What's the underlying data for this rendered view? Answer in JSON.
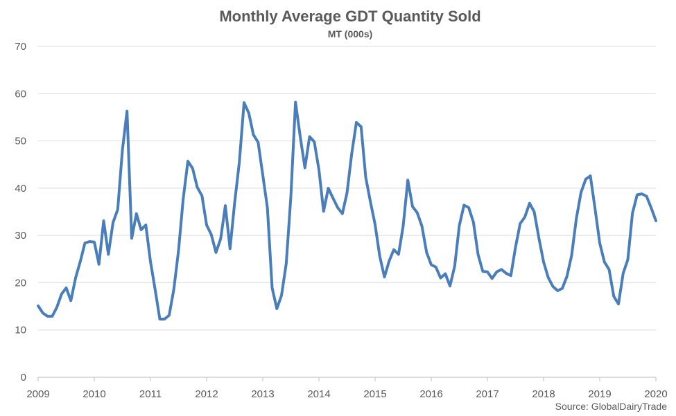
{
  "chart_data": {
    "type": "line",
    "title": "Monthly Average GDT Quantity Sold",
    "subtitle": "MT (000s)",
    "source": "Source: GlobalDairyTrade",
    "xlabel": "",
    "ylabel": "",
    "ylim": [
      0,
      70
    ],
    "xlim": [
      2009,
      2020
    ],
    "y_ticks": [
      0,
      10,
      20,
      30,
      40,
      50,
      60,
      70
    ],
    "x_ticks": [
      "2009",
      "2010",
      "2011",
      "2012",
      "2013",
      "2014",
      "2015",
      "2016",
      "2017",
      "2018",
      "2019",
      "2020"
    ],
    "grid": "horizontal",
    "legend": "none",
    "line_color": "#4a7ebb",
    "series": [
      {
        "x_start": "2009-01",
        "x_step": "1 month",
        "values": [
          15.1,
          13.6,
          12.9,
          12.9,
          14.8,
          17.6,
          18.9,
          16.2,
          21.0,
          24.5,
          28.4,
          28.7,
          28.6,
          23.9,
          33.1,
          26.0,
          32.7,
          35.5,
          48.0,
          56.3,
          29.4,
          34.6,
          31.2,
          32.2,
          24.5,
          18.6,
          12.3,
          12.3,
          13.1,
          18.7,
          26.8,
          37.7,
          45.7,
          44.2,
          40.2,
          38.4,
          32.2,
          30.2,
          26.4,
          29.3,
          36.3,
          27.2,
          37.0,
          45.5,
          58.1,
          55.9,
          51.3,
          49.7,
          42.8,
          35.8,
          18.9,
          14.5,
          17.3,
          24.0,
          38.2,
          58.2,
          50.9,
          44.3,
          50.9,
          49.8,
          43.9,
          35.1,
          40.0,
          37.9,
          35.9,
          34.6,
          39.0,
          47.2,
          53.9,
          53.0,
          42.3,
          37.1,
          32.3,
          25.6,
          21.2,
          24.6,
          27.0,
          26.0,
          32.0,
          41.7,
          36.1,
          34.8,
          32.0,
          26.4,
          23.8,
          23.3,
          21.0,
          21.9,
          19.3,
          23.5,
          32.1,
          36.4,
          35.9,
          32.8,
          26.0,
          22.4,
          22.3,
          20.9,
          22.3,
          22.8,
          22.0,
          21.5,
          27.5,
          32.5,
          33.9,
          36.8,
          35.0,
          29.4,
          24.4,
          21.1,
          19.2,
          18.3,
          18.8,
          21.4,
          25.8,
          33.5,
          39.1,
          41.9,
          42.6,
          35.6,
          28.4,
          24.4,
          22.8,
          17.1,
          15.5,
          22.0,
          24.9,
          34.7,
          38.6,
          38.8,
          38.3,
          35.8,
          33.1
        ]
      }
    ]
  }
}
